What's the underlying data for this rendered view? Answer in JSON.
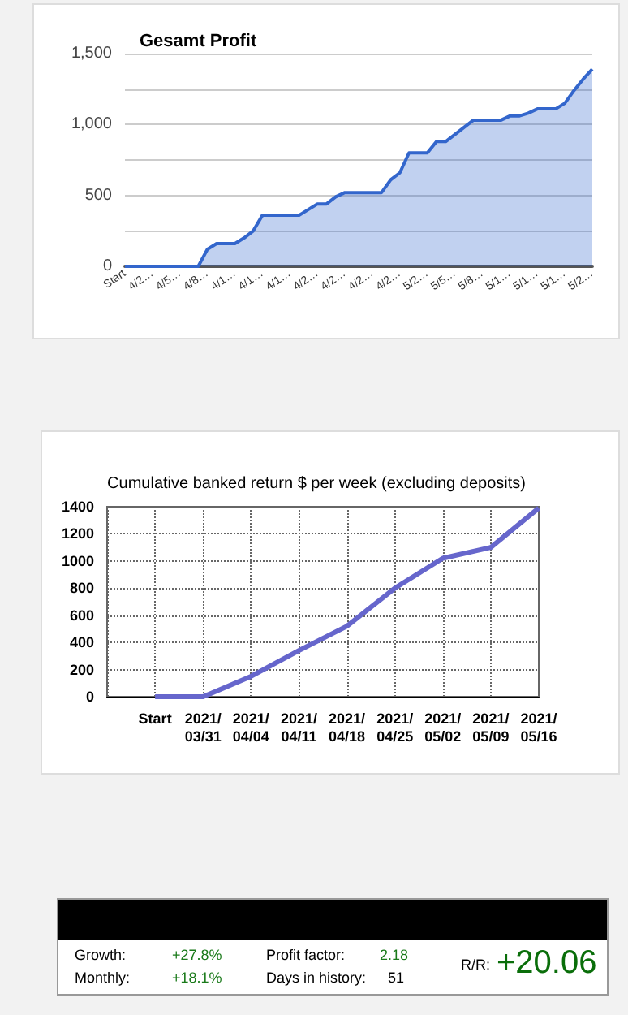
{
  "chart_data": [
    {
      "type": "area",
      "title": "Gesamt Profit",
      "categories": [
        "Start",
        null,
        null,
        "4/2…",
        null,
        null,
        "4/5…",
        null,
        null,
        "4/8…",
        null,
        null,
        "4/1…",
        null,
        null,
        "4/1…",
        null,
        null,
        "4/1…",
        null,
        null,
        "4/2…",
        null,
        null,
        "4/2…",
        null,
        null,
        "4/2…",
        null,
        null,
        "4/2…",
        null,
        null,
        "5/2…",
        null,
        null,
        "5/5…",
        null,
        null,
        "5/8…",
        null,
        null,
        "5/1…",
        null,
        null,
        "5/1…",
        null,
        null,
        "5/1…",
        null,
        null,
        "5/2…"
      ],
      "series": [
        {
          "color": "#3366cc",
          "values": [
            0,
            0,
            0,
            0,
            0,
            0,
            0,
            0,
            0,
            120,
            160,
            160,
            160,
            200,
            250,
            360,
            360,
            360,
            360,
            360,
            400,
            440,
            440,
            490,
            520,
            520,
            520,
            520,
            520,
            610,
            660,
            800,
            800,
            800,
            880,
            880,
            930,
            980,
            1030,
            1030,
            1030,
            1030,
            1060,
            1060,
            1080,
            1110,
            1110,
            1110,
            1150,
            1240,
            1320,
            1390
          ]
        }
      ],
      "ylim": [
        0,
        1500
      ],
      "yticks": [
        {
          "value": 0,
          "label": "0"
        },
        {
          "value": 250,
          "label": null
        },
        {
          "value": 500,
          "label": "500"
        },
        {
          "value": 750,
          "label": null
        },
        {
          "value": 1000,
          "label": "1,000"
        },
        {
          "value": 1250,
          "label": null
        },
        {
          "value": 1500,
          "label": "1,500"
        }
      ],
      "grid": "y",
      "marker": "none"
    },
    {
      "type": "line",
      "title": "Cumulative banked return $ per week (excluding deposits)",
      "categories": [
        "Start",
        "2021/\n03/31",
        "2021/\n04/04",
        "2021/\n04/11",
        "2021/\n04/18",
        "2021/\n04/25",
        "2021/\n05/02",
        "2021/\n05/09",
        "2021/\n05/16"
      ],
      "series": [
        {
          "color": "#6666cc",
          "values": [
            0,
            0,
            150,
            340,
            520,
            800,
            1020,
            1100,
            1390
          ]
        }
      ],
      "ylim": [
        0,
        1400
      ],
      "yticks": [
        0,
        200,
        400,
        600,
        800,
        1000,
        1200,
        1400
      ],
      "grid": true,
      "marker": "none"
    },
    {
      "type": "other",
      "annotations": [
        "Growth:",
        "+27.8%",
        "Profit factor:",
        "2.18",
        "Monthly:",
        "+18.1%",
        "Days in history:",
        "51",
        "R/R:",
        "+20.06"
      ]
    }
  ]
}
